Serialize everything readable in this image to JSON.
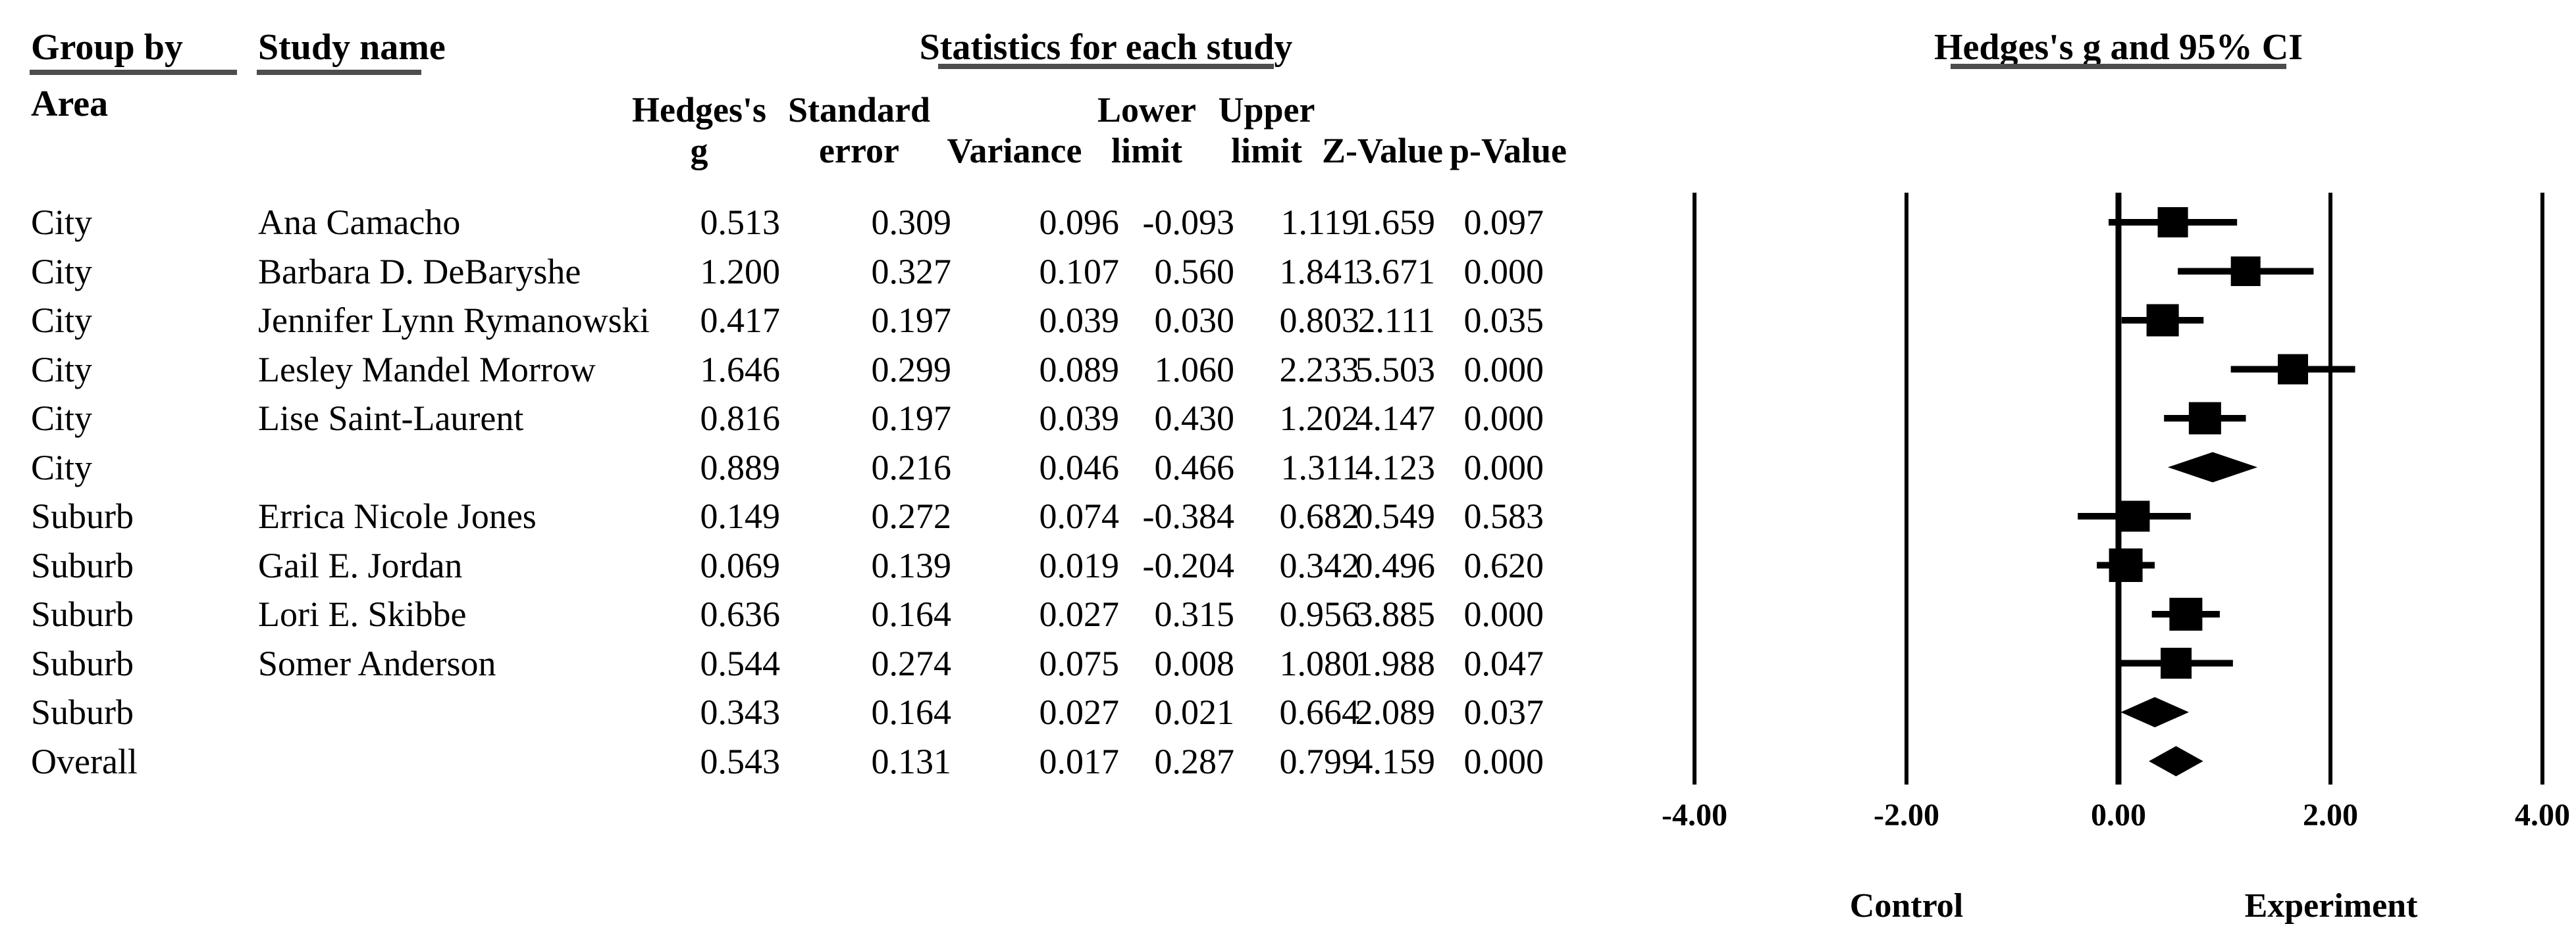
{
  "headers": {
    "group_by": "Group by",
    "group_by_sub": "Area",
    "study_name": "Study name",
    "stats_title": "Statistics for each study",
    "plot_title": "Hedges's g and 95% CI"
  },
  "stat_columns": [
    {
      "line1": "Hedges's",
      "line2": "g"
    },
    {
      "line1": "Standard",
      "line2": "error"
    },
    {
      "line1": "",
      "line2": "Variance"
    },
    {
      "line1": "Lower",
      "line2": "limit"
    },
    {
      "line1": "Upper",
      "line2": "limit"
    },
    {
      "line1": "",
      "line2": "Z-Value"
    },
    {
      "line1": "",
      "line2": "p-Value"
    }
  ],
  "rows": [
    {
      "area": "City",
      "study": "Ana Camacho",
      "g": "0.513",
      "se": "0.309",
      "variance": "0.096",
      "lower": "-0.093",
      "upper": "1.119",
      "z": "1.659",
      "p": "0.097",
      "summary": false
    },
    {
      "area": "City",
      "study": "Barbara D. DeBaryshe",
      "g": "1.200",
      "se": "0.327",
      "variance": "0.107",
      "lower": "0.560",
      "upper": "1.841",
      "z": "3.671",
      "p": "0.000",
      "summary": false
    },
    {
      "area": "City",
      "study": "Jennifer Lynn Rymanowski",
      "g": "0.417",
      "se": "0.197",
      "variance": "0.039",
      "lower": "0.030",
      "upper": "0.803",
      "z": "2.111",
      "p": "0.035",
      "summary": false
    },
    {
      "area": "City",
      "study": "Lesley Mandel Morrow",
      "g": "1.646",
      "se": "0.299",
      "variance": "0.089",
      "lower": "1.060",
      "upper": "2.233",
      "z": "5.503",
      "p": "0.000",
      "summary": false
    },
    {
      "area": "City",
      "study": "Lise Saint-Laurent",
      "g": "0.816",
      "se": "0.197",
      "variance": "0.039",
      "lower": "0.430",
      "upper": "1.202",
      "z": "4.147",
      "p": "0.000",
      "summary": false
    },
    {
      "area": "City",
      "study": "",
      "g": "0.889",
      "se": "0.216",
      "variance": "0.046",
      "lower": "0.466",
      "upper": "1.311",
      "z": "4.123",
      "p": "0.000",
      "summary": true
    },
    {
      "area": "Suburb",
      "study": "Errica Nicole Jones",
      "g": "0.149",
      "se": "0.272",
      "variance": "0.074",
      "lower": "-0.384",
      "upper": "0.682",
      "z": "0.549",
      "p": "0.583",
      "summary": false
    },
    {
      "area": "Suburb",
      "study": "Gail E. Jordan",
      "g": "0.069",
      "se": "0.139",
      "variance": "0.019",
      "lower": "-0.204",
      "upper": "0.342",
      "z": "0.496",
      "p": "0.620",
      "summary": false
    },
    {
      "area": "Suburb",
      "study": "Lori E. Skibbe",
      "g": "0.636",
      "se": "0.164",
      "variance": "0.027",
      "lower": "0.315",
      "upper": "0.956",
      "z": "3.885",
      "p": "0.000",
      "summary": false
    },
    {
      "area": "Suburb",
      "study": "Somer Anderson",
      "g": "0.544",
      "se": "0.274",
      "variance": "0.075",
      "lower": "0.008",
      "upper": "1.080",
      "z": "1.988",
      "p": "0.047",
      "summary": false
    },
    {
      "area": "Suburb",
      "study": "",
      "g": "0.343",
      "se": "0.164",
      "variance": "0.027",
      "lower": "0.021",
      "upper": "0.664",
      "z": "2.089",
      "p": "0.037",
      "summary": true
    },
    {
      "area": "Overall",
      "study": "",
      "g": "0.543",
      "se": "0.131",
      "variance": "0.017",
      "lower": "0.287",
      "upper": "0.799",
      "z": "4.159",
      "p": "0.000",
      "summary": true
    }
  ],
  "axis": {
    "ticks": [
      {
        "label": "-4.00",
        "value": -4
      },
      {
        "label": "-2.00",
        "value": -2
      },
      {
        "label": "0.00",
        "value": 0
      },
      {
        "label": "2.00",
        "value": 2
      },
      {
        "label": "4.00",
        "value": 4
      }
    ],
    "left_label": "Control",
    "right_label": "Experiment"
  },
  "colors": {
    "text": "#000000",
    "underline": "#4d4d4d",
    "marker": "#000000"
  },
  "chart_data": {
    "type": "scatter",
    "subtype": "forest_plot",
    "title": "Hedges's g and 95% CI",
    "xlabel_ticks": [
      "-4.00",
      "-2.00",
      "0.00",
      "2.00",
      "4.00"
    ],
    "xlim": [
      -4,
      4
    ],
    "grid": "vertical-lines-at-ticks",
    "direction_labels": {
      "left": "Control",
      "right": "Experiment"
    },
    "points": [
      {
        "group": "City",
        "label": "Ana Camacho",
        "g": 0.513,
        "lower": -0.093,
        "upper": 1.119,
        "marker": "square"
      },
      {
        "group": "City",
        "label": "Barbara D. DeBaryshe",
        "g": 1.2,
        "lower": 0.56,
        "upper": 1.841,
        "marker": "square"
      },
      {
        "group": "City",
        "label": "Jennifer Lynn Rymanowski",
        "g": 0.417,
        "lower": 0.03,
        "upper": 0.803,
        "marker": "square"
      },
      {
        "group": "City",
        "label": "Lesley Mandel Morrow",
        "g": 1.646,
        "lower": 1.06,
        "upper": 2.233,
        "marker": "square"
      },
      {
        "group": "City",
        "label": "Lise Saint-Laurent",
        "g": 0.816,
        "lower": 0.43,
        "upper": 1.202,
        "marker": "square"
      },
      {
        "group": "City",
        "label": "City summary",
        "g": 0.889,
        "lower": 0.466,
        "upper": 1.311,
        "marker": "diamond"
      },
      {
        "group": "Suburb",
        "label": "Errica Nicole Jones",
        "g": 0.149,
        "lower": -0.384,
        "upper": 0.682,
        "marker": "square"
      },
      {
        "group": "Suburb",
        "label": "Gail E. Jordan",
        "g": 0.069,
        "lower": -0.204,
        "upper": 0.342,
        "marker": "square"
      },
      {
        "group": "Suburb",
        "label": "Lori E. Skibbe",
        "g": 0.636,
        "lower": 0.315,
        "upper": 0.956,
        "marker": "square"
      },
      {
        "group": "Suburb",
        "label": "Somer Anderson",
        "g": 0.544,
        "lower": 0.008,
        "upper": 1.08,
        "marker": "square"
      },
      {
        "group": "Suburb",
        "label": "Suburb summary",
        "g": 0.343,
        "lower": 0.021,
        "upper": 0.664,
        "marker": "diamond"
      },
      {
        "group": "Overall",
        "label": "Overall",
        "g": 0.543,
        "lower": 0.287,
        "upper": 0.799,
        "marker": "diamond"
      }
    ]
  }
}
